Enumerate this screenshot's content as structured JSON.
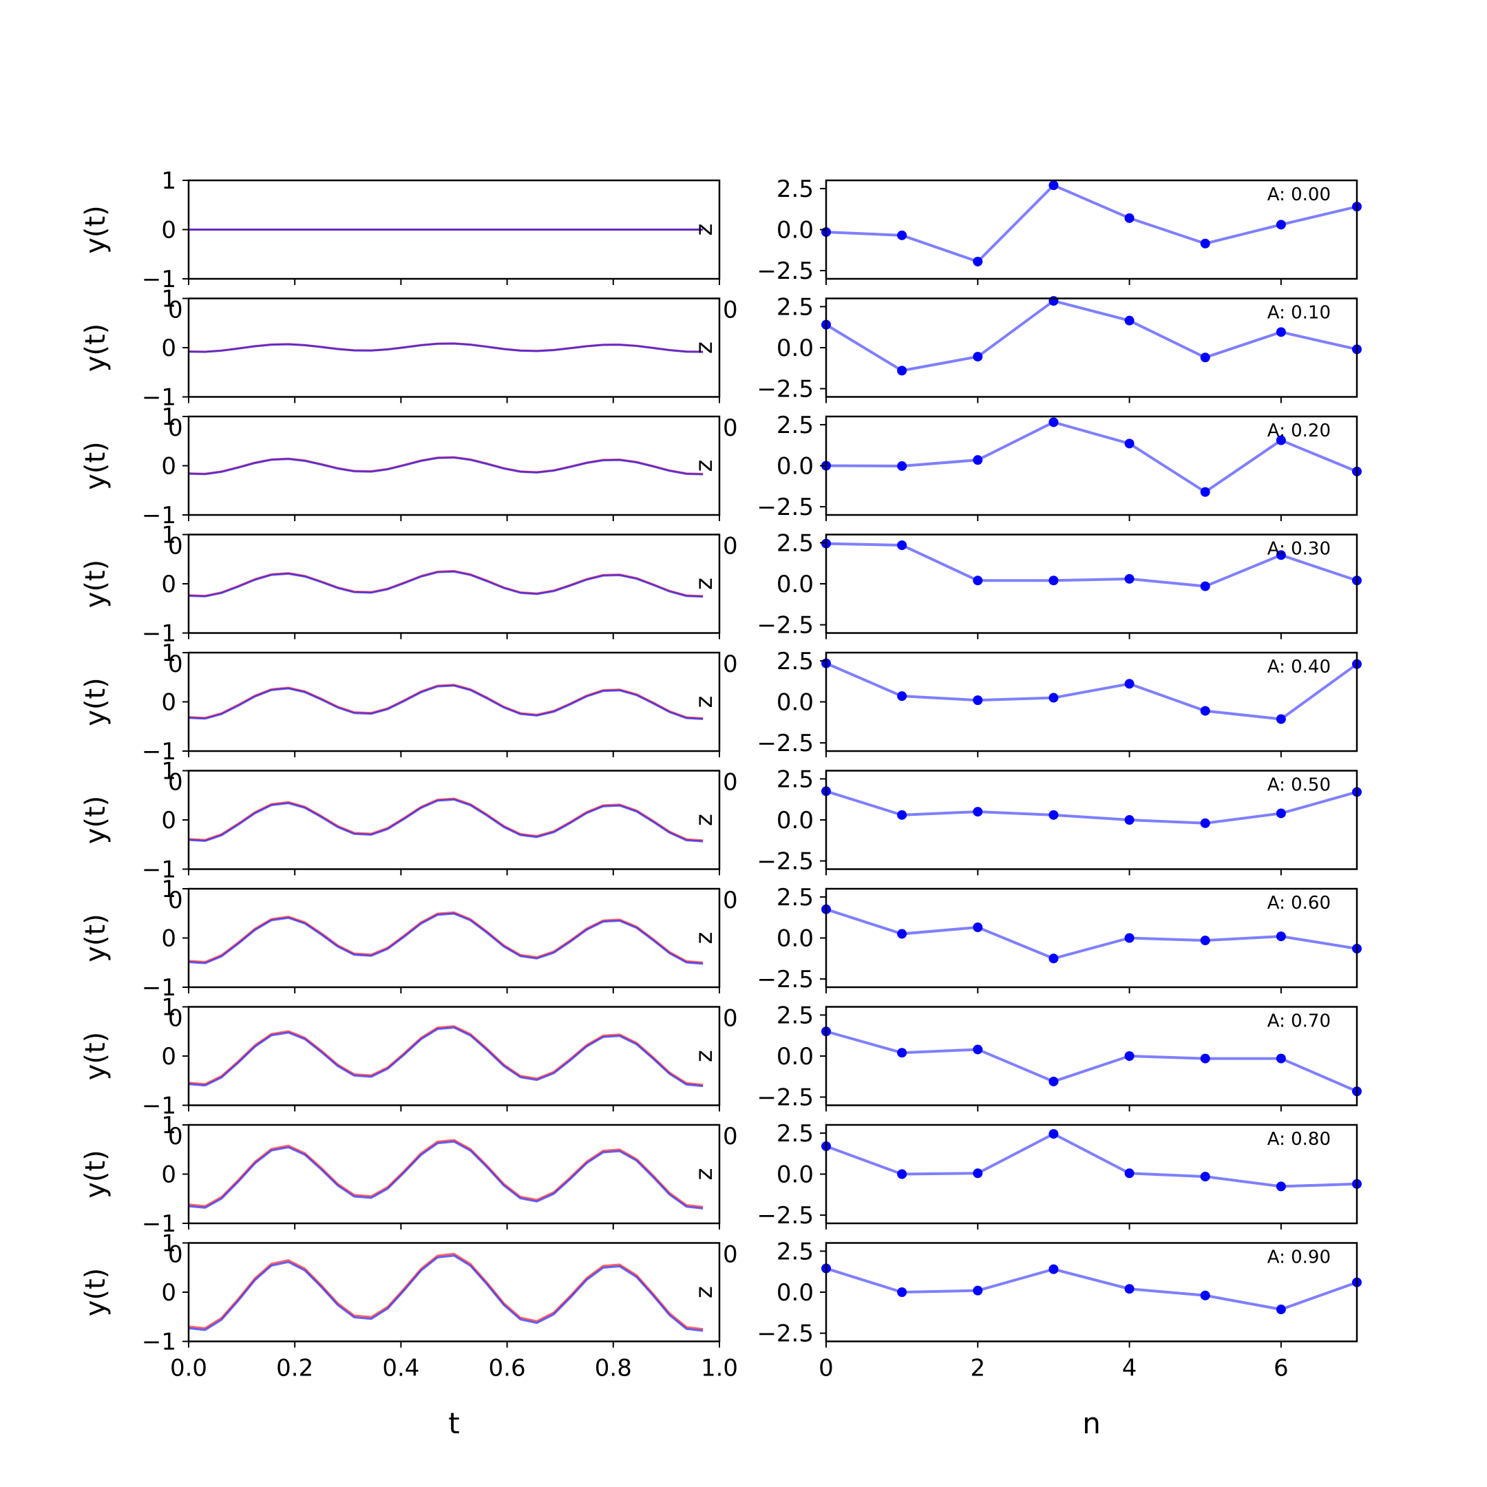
{
  "chart_data": {
    "type": "line",
    "layout": "10 rows x 2 columns of subplots",
    "left_column": {
      "xlabel": "t",
      "ylabel": "y(t)",
      "xlim": [
        0.0,
        1.0
      ],
      "ylim": [
        -1,
        1
      ],
      "xticks": [
        "0.0",
        "0.2",
        "0.4",
        "0.6",
        "0.8",
        "1.0"
      ],
      "yticks": [
        "−1",
        "0",
        "1"
      ],
      "edge_label": "z",
      "overlay_tick_text": "0",
      "line_colors": [
        "#ff0000",
        "#0000ff"
      ],
      "t": [
        0.0,
        0.031,
        0.062,
        0.094,
        0.125,
        0.156,
        0.188,
        0.219,
        0.25,
        0.281,
        0.312,
        0.344,
        0.375,
        0.406,
        0.438,
        0.469,
        0.5,
        0.531,
        0.562,
        0.594,
        0.625,
        0.656,
        0.688,
        0.719,
        0.75,
        0.781,
        0.812,
        0.844,
        0.875,
        0.906,
        0.938,
        0.969
      ],
      "amplitudes": [
        0.0,
        0.1,
        0.2,
        0.3,
        0.4,
        0.5,
        0.6,
        0.7,
        0.8,
        0.9
      ]
    },
    "right_column": {
      "xlabel": "n",
      "xlim": [
        0,
        7
      ],
      "ylim": [
        -3.0,
        3.0
      ],
      "xticks": [
        "0",
        "2",
        "4",
        "6"
      ],
      "yticks": [
        "−2.5",
        "0.0",
        "2.5"
      ],
      "line_color": "#0000ff",
      "n": [
        0,
        1,
        2,
        3,
        4,
        5,
        6,
        7
      ],
      "panels": [
        {
          "label": "A: 0.00",
          "values": [
            -0.15,
            -0.35,
            -1.95,
            2.7,
            0.7,
            -0.85,
            0.3,
            1.4
          ]
        },
        {
          "label": "A: 0.10",
          "values": [
            1.4,
            -1.4,
            -0.55,
            2.85,
            1.65,
            -0.6,
            0.95,
            -0.1
          ]
        },
        {
          "label": "A: 0.20",
          "values": [
            0.0,
            -0.02,
            0.35,
            2.65,
            1.35,
            -1.6,
            1.55,
            -0.35
          ]
        },
        {
          "label": "A: 0.30",
          "values": [
            2.45,
            2.35,
            0.2,
            0.2,
            0.3,
            -0.15,
            1.75,
            0.2
          ]
        },
        {
          "label": "A: 0.40",
          "values": [
            2.35,
            0.35,
            0.1,
            0.25,
            1.1,
            -0.55,
            -1.05,
            2.3
          ]
        },
        {
          "label": "A: 0.50",
          "values": [
            1.75,
            0.3,
            0.5,
            0.3,
            0.0,
            -0.2,
            0.4,
            1.7
          ]
        },
        {
          "label": "A: 0.60",
          "values": [
            1.75,
            0.25,
            0.65,
            -1.25,
            0.0,
            -0.15,
            0.1,
            -0.65
          ]
        },
        {
          "label": "A: 0.70",
          "values": [
            1.5,
            0.2,
            0.4,
            -1.55,
            0.0,
            -0.15,
            -0.15,
            -2.15
          ]
        },
        {
          "label": "A: 0.80",
          "values": [
            1.7,
            0.0,
            0.05,
            2.45,
            0.05,
            -0.15,
            -0.75,
            -0.6
          ]
        },
        {
          "label": "A: 0.90",
          "values": [
            1.45,
            0.0,
            0.1,
            1.4,
            0.2,
            -0.2,
            -1.05,
            0.6
          ]
        }
      ]
    }
  }
}
